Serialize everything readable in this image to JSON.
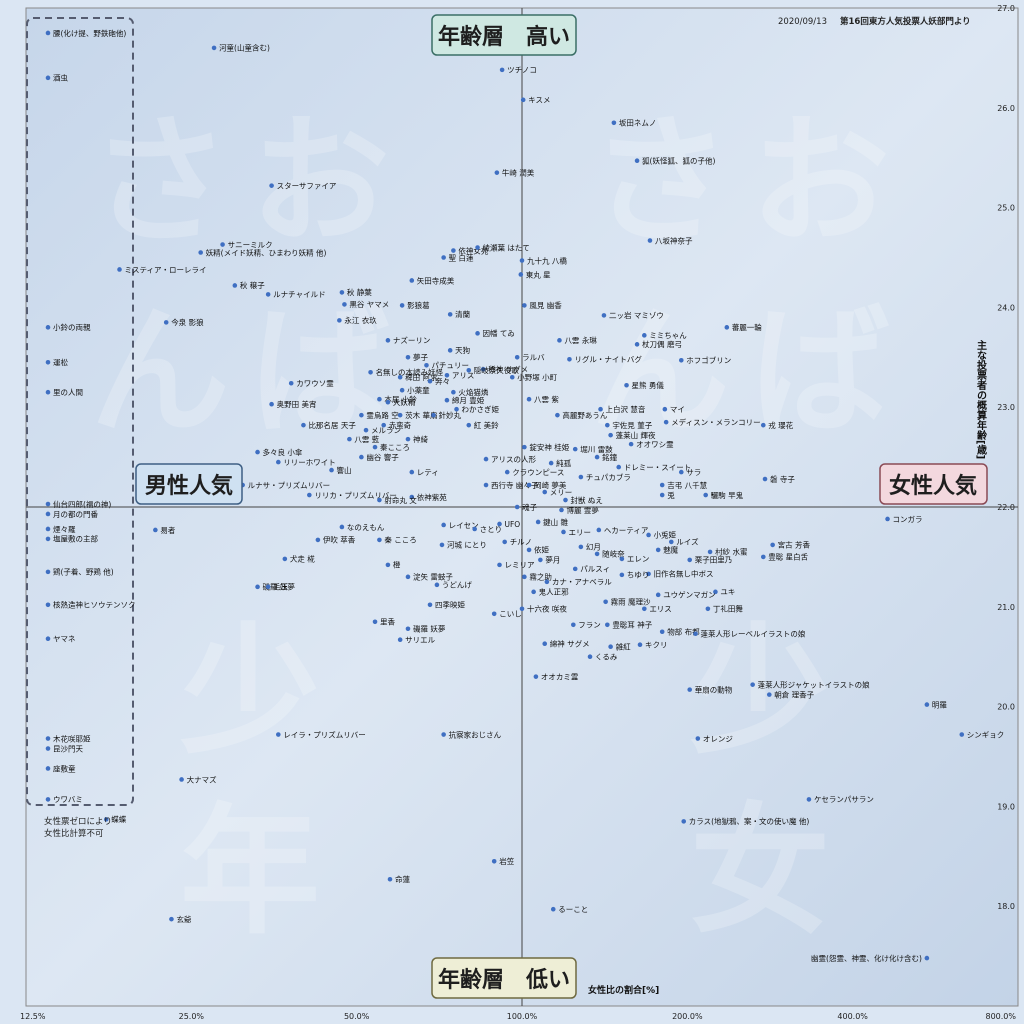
{
  "header": {
    "date": "2020/09/13",
    "source": "第16回東方人気投票人妖部門より"
  },
  "labels": {
    "top": "年齢層　高い",
    "bottom": "年齢層　低い",
    "left": "男性人気",
    "right": "女性人気",
    "xaxis": "女性比の割合[%]",
    "yaxis": "主な投票者の概算年齢[歳]",
    "zero_note_1": "女性票ゼロにより",
    "zero_note_2": "女性比計算不可"
  },
  "colors": {
    "point": "#3f6fc2",
    "top_box": "#cfe8e2",
    "bottom_box": "#eeeed6",
    "left_box": "#cfe1f2",
    "right_box": "#f3d8de"
  },
  "chart_data": {
    "type": "scatter",
    "x_scale": "log",
    "xlim": [
      12.5,
      800
    ],
    "ylim": [
      17,
      27
    ],
    "x_ticks": [
      {
        "v": 12.5,
        "label": "12.5%"
      },
      {
        "v": 25,
        "label": "25.0%"
      },
      {
        "v": 50,
        "label": "50.0%"
      },
      {
        "v": 100,
        "label": "100.0%"
      },
      {
        "v": 200,
        "label": "200.0%"
      },
      {
        "v": 400,
        "label": "400.0%"
      },
      {
        "v": 800,
        "label": "800.0%"
      }
    ],
    "y_ticks": [
      {
        "v": 18,
        "label": "18.0"
      },
      {
        "v": 19,
        "label": "19.0"
      },
      {
        "v": 20,
        "label": "20.0"
      },
      {
        "v": 21,
        "label": "21.0"
      },
      {
        "v": 22,
        "label": "22.0"
      },
      {
        "v": 23,
        "label": "23.0"
      },
      {
        "v": 24,
        "label": "24.0"
      },
      {
        "v": 25,
        "label": "25.0"
      },
      {
        "v": 26,
        "label": "26.0"
      },
      {
        "v": 27,
        "label": "27.0"
      }
    ],
    "zero_points": [
      {
        "label": "腰(化け提、野鉄砲他)",
        "y": 26.75
      },
      {
        "label": "酒虫",
        "y": 26.3
      },
      {
        "label": "小鈴の両親",
        "y": 23.8
      },
      {
        "label": "運松",
        "y": 23.45
      },
      {
        "label": "里の人間",
        "y": 23.15
      },
      {
        "label": "仙台四郎(福の神)",
        "y": 22.03
      },
      {
        "label": "月の都の門番",
        "y": 21.93
      },
      {
        "label": "煙々羅",
        "y": 21.78
      },
      {
        "label": "塩屋敷の主部",
        "y": 21.68
      },
      {
        "label": "鶏(子着、野鶏 他)",
        "y": 21.35
      },
      {
        "label": "核熱造神ヒソウテンソク",
        "y": 21.02
      },
      {
        "label": "ヤマネ",
        "y": 20.68
      },
      {
        "label": "木花咲耶姫",
        "y": 19.68
      },
      {
        "label": "昆沙門天",
        "y": 19.58
      },
      {
        "label": "座敷童",
        "y": 19.38
      },
      {
        "label": "ウワバミ",
        "y": 19.07
      }
    ],
    "points": [
      {
        "label": "河童(山童含む)",
        "x": 27.5,
        "y": 26.6
      },
      {
        "label": "ツチノコ",
        "x": 92,
        "y": 26.38
      },
      {
        "label": "キスメ",
        "x": 100.5,
        "y": 26.08
      },
      {
        "label": "坂田ネムノ",
        "x": 147,
        "y": 25.85
      },
      {
        "label": "狐(妖怪狐、狐の子他)",
        "x": 162,
        "y": 25.47
      },
      {
        "label": "牛崎 潤美",
        "x": 90,
        "y": 25.35
      },
      {
        "label": "スターサファイア",
        "x": 35,
        "y": 25.22
      },
      {
        "label": "八坂神奈子",
        "x": 171,
        "y": 24.67
      },
      {
        "label": "サニーミルク",
        "x": 28.5,
        "y": 24.63
      },
      {
        "label": "依神女苑",
        "x": 75,
        "y": 24.57
      },
      {
        "label": "綾瀬葉 はたて",
        "x": 83,
        "y": 24.6
      },
      {
        "label": "妖精(メイド妖精、ひまわり妖精 他)",
        "x": 26,
        "y": 24.55
      },
      {
        "label": "聖 白蓮",
        "x": 72,
        "y": 24.5
      },
      {
        "label": "九十九 八橋",
        "x": 100,
        "y": 24.47
      },
      {
        "label": "ミスティア・ローレライ",
        "x": 18.5,
        "y": 24.38
      },
      {
        "label": "東丸 星",
        "x": 99.5,
        "y": 24.33
      },
      {
        "label": "矢田寺成美",
        "x": 63,
        "y": 24.27
      },
      {
        "label": "秋 穣子",
        "x": 30,
        "y": 24.22
      },
      {
        "label": "秋 静葉",
        "x": 47,
        "y": 24.15
      },
      {
        "label": "ルナチャイルド",
        "x": 34.5,
        "y": 24.13
      },
      {
        "label": "黒谷 ヤマメ",
        "x": 47.5,
        "y": 24.03
      },
      {
        "label": "影狼葛",
        "x": 60.5,
        "y": 24.02
      },
      {
        "label": "風見 幽香",
        "x": 101,
        "y": 24.02
      },
      {
        "label": "清蘭",
        "x": 74,
        "y": 23.93
      },
      {
        "label": "二ッ岩 マミゾウ",
        "x": 141,
        "y": 23.92
      },
      {
        "label": "今泉 影狼",
        "x": 22.5,
        "y": 23.85
      },
      {
        "label": "永江 衣玖",
        "x": 46.5,
        "y": 23.87
      },
      {
        "label": "蕃麗一輪",
        "x": 236,
        "y": 23.8
      },
      {
        "label": "因幡 てゐ",
        "x": 83,
        "y": 23.74
      },
      {
        "label": "ミミちゃん",
        "x": 167,
        "y": 23.72
      },
      {
        "label": "ナズーリン",
        "x": 57,
        "y": 23.67
      },
      {
        "label": "八雲 永琳",
        "x": 117,
        "y": 23.67
      },
      {
        "label": "杖刀偶 磨弓",
        "x": 162,
        "y": 23.63
      },
      {
        "label": "天狗",
        "x": 74,
        "y": 23.57
      },
      {
        "label": "ラルバ",
        "x": 98,
        "y": 23.5
      },
      {
        "label": "リグル・ナイトバグ",
        "x": 122,
        "y": 23.48
      },
      {
        "label": "ホフゴブリン",
        "x": 195,
        "y": 23.47
      },
      {
        "label": "夢子",
        "x": 62,
        "y": 23.5
      },
      {
        "label": "パチュリー",
        "x": 67,
        "y": 23.42
      },
      {
        "label": "稀神 サグメ",
        "x": 85,
        "y": 23.38
      },
      {
        "label": "名無しの本読み妖怪",
        "x": 53,
        "y": 23.35
      },
      {
        "label": "隠岐奈久役歌",
        "x": 80,
        "y": 23.37
      },
      {
        "label": "稗田 阿求",
        "x": 60,
        "y": 23.3
      },
      {
        "label": "アリス",
        "x": 73,
        "y": 23.32
      },
      {
        "label": "小野塚 小町",
        "x": 96,
        "y": 23.3
      },
      {
        "label": "カワウソ霊",
        "x": 38,
        "y": 23.24
      },
      {
        "label": "奔々",
        "x": 68,
        "y": 23.26
      },
      {
        "label": "星熊 勇儀",
        "x": 155,
        "y": 23.22
      },
      {
        "label": "小薬童",
        "x": 60.5,
        "y": 23.17
      },
      {
        "label": "火焔猫燐",
        "x": 75,
        "y": 23.15
      },
      {
        "label": "本居 小鈴",
        "x": 55,
        "y": 23.08
      },
      {
        "label": "大妖精",
        "x": 57,
        "y": 23.05
      },
      {
        "label": "綿月 豊姫",
        "x": 73,
        "y": 23.07
      },
      {
        "label": "八雲 紫",
        "x": 103,
        "y": 23.08
      },
      {
        "label": "奥野田 美宵",
        "x": 35,
        "y": 23.03
      },
      {
        "label": "わかさぎ姫",
        "x": 76,
        "y": 22.98
      },
      {
        "label": "上白沢 慧音",
        "x": 139,
        "y": 22.98
      },
      {
        "label": "マイ",
        "x": 182,
        "y": 22.98
      },
      {
        "label": "霊烏路 空",
        "x": 51,
        "y": 22.92
      },
      {
        "label": "茨木 華扇",
        "x": 60,
        "y": 22.92
      },
      {
        "label": "針妙丸",
        "x": 69,
        "y": 22.92
      },
      {
        "label": "高麗野あうん",
        "x": 116,
        "y": 22.92
      },
      {
        "label": "比那名居 天子",
        "x": 40,
        "y": 22.82
      },
      {
        "label": "赤蛮奇",
        "x": 56,
        "y": 22.82
      },
      {
        "label": "メディスン・メランコリー",
        "x": 183,
        "y": 22.85
      },
      {
        "label": "宇佐見 菫子",
        "x": 143,
        "y": 22.82
      },
      {
        "label": "紅 美鈴",
        "x": 80,
        "y": 22.82
      },
      {
        "label": "戎 瓔花",
        "x": 275,
        "y": 22.82
      },
      {
        "label": "メルラン",
        "x": 52,
        "y": 22.77
      },
      {
        "label": "蓬莱山 輝夜",
        "x": 145,
        "y": 22.72
      },
      {
        "label": "八雲 藍",
        "x": 48.5,
        "y": 22.68
      },
      {
        "label": "神綺",
        "x": 62,
        "y": 22.68
      },
      {
        "label": "オオワシ霊",
        "x": 158,
        "y": 22.63
      },
      {
        "label": "秦こころ",
        "x": 54,
        "y": 22.6
      },
      {
        "label": "錠安神 桂姫",
        "x": 101,
        "y": 22.6
      },
      {
        "label": "堀川 雷鼓",
        "x": 125,
        "y": 22.58
      },
      {
        "label": "多々良 小傘",
        "x": 33,
        "y": 22.55
      },
      {
        "label": "幽谷 響子",
        "x": 51,
        "y": 22.5
      },
      {
        "label": "銘鐘",
        "x": 137,
        "y": 22.5
      },
      {
        "label": "アリスの人形",
        "x": 86,
        "y": 22.48
      },
      {
        "label": "リリーホワイト",
        "x": 36,
        "y": 22.45
      },
      {
        "label": "純孤",
        "x": 113,
        "y": 22.44
      },
      {
        "label": "ドレミー・スイート",
        "x": 150,
        "y": 22.4
      },
      {
        "label": "響山",
        "x": 45,
        "y": 22.37
      },
      {
        "label": "レティ",
        "x": 63,
        "y": 22.35
      },
      {
        "label": "クラウンピース",
        "x": 94,
        "y": 22.35
      },
      {
        "label": "サラ",
        "x": 195,
        "y": 22.35
      },
      {
        "label": "チュパカブラ",
        "x": 128,
        "y": 22.3
      },
      {
        "label": "磐 寺子",
        "x": 277,
        "y": 22.28
      },
      {
        "label": "ルナサ・プリズムリバー",
        "x": 31,
        "y": 22.22
      },
      {
        "label": "西行寺 幽々子",
        "x": 86,
        "y": 22.22
      },
      {
        "label": "岡崎 夢美",
        "x": 103,
        "y": 22.22
      },
      {
        "label": "吉弔 八千慧",
        "x": 180,
        "y": 22.22
      },
      {
        "label": "メリー",
        "x": 110,
        "y": 22.15
      },
      {
        "label": "リリカ・プリズムリバー",
        "x": 41,
        "y": 22.12
      },
      {
        "label": "兎",
        "x": 180,
        "y": 22.12
      },
      {
        "label": "驪駒 早鬼",
        "x": 216,
        "y": 22.12
      },
      {
        "label": "依神紫苑",
        "x": 63,
        "y": 22.1
      },
      {
        "label": "射命丸 文",
        "x": 55,
        "y": 22.07
      },
      {
        "label": "封獣 ぬえ",
        "x": 120,
        "y": 22.07
      },
      {
        "label": "魂子",
        "x": 98,
        "y": 22.0
      },
      {
        "label": "博麗 霊夢",
        "x": 118,
        "y": 21.97
      },
      {
        "label": "コンガラ",
        "x": 463,
        "y": 21.88
      },
      {
        "label": "鍵山 雛",
        "x": 107,
        "y": 21.85
      },
      {
        "label": "UFO",
        "x": 91,
        "y": 21.83
      },
      {
        "label": "レイセン",
        "x": 72,
        "y": 21.82
      },
      {
        "label": "なのえもん",
        "x": 47,
        "y": 21.8
      },
      {
        "label": "さとり",
        "x": 82,
        "y": 21.78
      },
      {
        "label": "エリー",
        "x": 119,
        "y": 21.75
      },
      {
        "label": "ヘカーティア",
        "x": 138,
        "y": 21.77
      },
      {
        "label": "易者",
        "x": 21.5,
        "y": 21.77
      },
      {
        "label": "小兎姫",
        "x": 170,
        "y": 21.72
      },
      {
        "label": "伊吹 萃香",
        "x": 42.5,
        "y": 21.67
      },
      {
        "label": "秦 こころ",
        "x": 55,
        "y": 21.67
      },
      {
        "label": "チルノ",
        "x": 93,
        "y": 21.65
      },
      {
        "label": "ルイズ",
        "x": 187,
        "y": 21.65
      },
      {
        "label": "宮古 芳香",
        "x": 286,
        "y": 21.62
      },
      {
        "label": "河城 にとり",
        "x": 71.5,
        "y": 21.62
      },
      {
        "label": "幻月",
        "x": 128,
        "y": 21.6
      },
      {
        "label": "依姫",
        "x": 103,
        "y": 21.57
      },
      {
        "label": "村紗 水蜜",
        "x": 220,
        "y": 21.55
      },
      {
        "label": "魅魔",
        "x": 177,
        "y": 21.57
      },
      {
        "label": "随岐奈",
        "x": 137,
        "y": 21.53
      },
      {
        "label": "犬走 椛",
        "x": 37,
        "y": 21.48
      },
      {
        "label": "夢月",
        "x": 108,
        "y": 21.47
      },
      {
        "label": "エレン",
        "x": 152,
        "y": 21.48
      },
      {
        "label": "栗子田里乃",
        "x": 202,
        "y": 21.47
      },
      {
        "label": "豊聡 星白舌",
        "x": 275,
        "y": 21.5
      },
      {
        "label": "橙",
        "x": 57,
        "y": 21.42
      },
      {
        "label": "レミリア",
        "x": 91,
        "y": 21.42
      },
      {
        "label": "パルスィ",
        "x": 125,
        "y": 21.38
      },
      {
        "label": "旧作名無し中ボス",
        "x": 170,
        "y": 21.33
      },
      {
        "label": "ちゆり",
        "x": 152,
        "y": 21.32
      },
      {
        "label": "淀矢 雷鼓子",
        "x": 62,
        "y": 21.3
      },
      {
        "label": "霧之助",
        "x": 101,
        "y": 21.3
      },
      {
        "label": "カナ・アナベラル",
        "x": 111,
        "y": 21.25
      },
      {
        "label": "うどんげ",
        "x": 70,
        "y": 21.22
      },
      {
        "label": "磯羅 妖夢",
        "x": 33,
        "y": 21.2
      },
      {
        "label": "毛玉",
        "x": 34.5,
        "y": 21.2
      },
      {
        "label": "鬼人正邪",
        "x": 105,
        "y": 21.15
      },
      {
        "label": "ユキ",
        "x": 225,
        "y": 21.15
      },
      {
        "label": "ユウゲンマガン",
        "x": 177,
        "y": 21.12
      },
      {
        "label": "霧雨 魔理沙",
        "x": 142,
        "y": 21.05
      },
      {
        "label": "四季映姫",
        "x": 68,
        "y": 21.02
      },
      {
        "label": "十六夜 咲夜",
        "x": 100,
        "y": 20.98
      },
      {
        "label": "エリス",
        "x": 167,
        "y": 20.98
      },
      {
        "label": "丁礼田舞",
        "x": 218,
        "y": 20.98
      },
      {
        "label": "こいし",
        "x": 89,
        "y": 20.93
      },
      {
        "label": "里香",
        "x": 54,
        "y": 20.85
      },
      {
        "label": "フラン",
        "x": 124,
        "y": 20.82
      },
      {
        "label": "豊聡耳 神子",
        "x": 143,
        "y": 20.82
      },
      {
        "label": "磯羅 妖夢",
        "x": 62,
        "y": 20.78
      },
      {
        "label": "物部 布都",
        "x": 180,
        "y": 20.75
      },
      {
        "label": "蓬莱人形レーベルイラストの娘",
        "x": 207,
        "y": 20.73
      },
      {
        "label": "サリエル",
        "x": 60,
        "y": 20.67
      },
      {
        "label": "綿神 サグメ",
        "x": 110,
        "y": 20.63
      },
      {
        "label": "雑紅",
        "x": 145,
        "y": 20.6
      },
      {
        "label": "キクリ",
        "x": 164,
        "y": 20.62
      },
      {
        "label": "くるみ",
        "x": 133,
        "y": 20.5
      },
      {
        "label": "オオカミ霊",
        "x": 106,
        "y": 20.3
      },
      {
        "label": "蓬莱人形ジャケットイラストの娘",
        "x": 263,
        "y": 20.22
      },
      {
        "label": "華扇の動物",
        "x": 202,
        "y": 20.17
      },
      {
        "label": "朝倉 理香子",
        "x": 282,
        "y": 20.12
      },
      {
        "label": "明羅",
        "x": 546,
        "y": 20.02
      },
      {
        "label": "レイラ・プリズムリバー",
        "x": 36,
        "y": 19.72
      },
      {
        "label": "抗察家おじさん",
        "x": 72,
        "y": 19.72
      },
      {
        "label": "シンギョク",
        "x": 632,
        "y": 19.72
      },
      {
        "label": "オレンジ",
        "x": 209,
        "y": 19.68
      },
      {
        "label": "大ナマズ",
        "x": 24,
        "y": 19.27
      },
      {
        "label": "ケセランパサラン",
        "x": 333,
        "y": 19.07
      },
      {
        "label": "蝶蝶",
        "x": 17.5,
        "y": 18.87
      },
      {
        "label": "カラス(地獄鴉、案・文の使い魔 他)",
        "x": 197,
        "y": 18.85
      },
      {
        "label": "岩笠",
        "x": 89,
        "y": 18.45
      },
      {
        "label": "命蓮",
        "x": 57.5,
        "y": 18.27
      },
      {
        "label": "るーこと",
        "x": 114,
        "y": 17.97
      },
      {
        "label": "玄爺",
        "x": 23,
        "y": 17.87
      },
      {
        "label": "幽霊(怨霊、神霊、化け化け含む)",
        "x": 546,
        "y": 17.48
      }
    ]
  }
}
